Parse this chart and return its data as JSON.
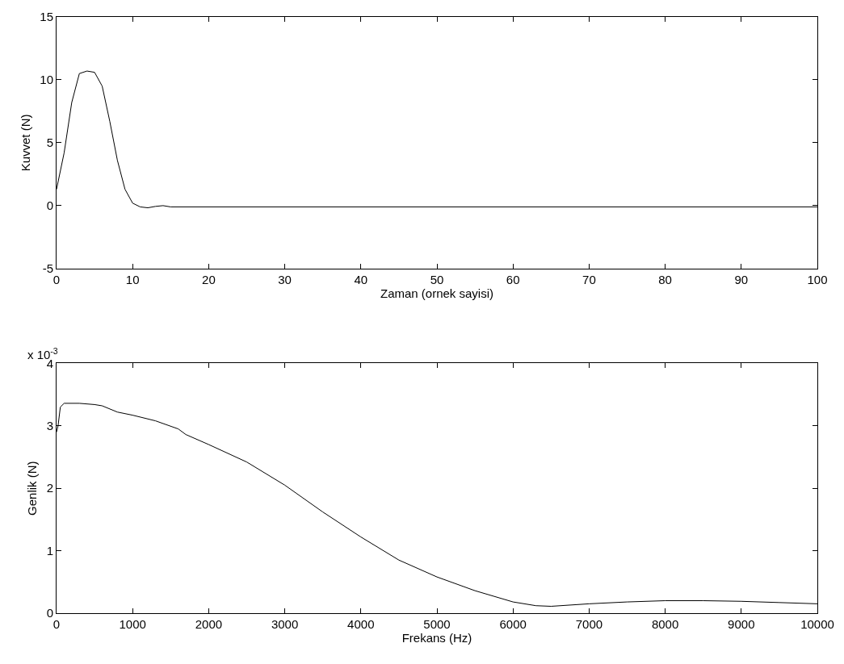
{
  "chart_data": [
    {
      "type": "line",
      "xlabel": "Zaman (ornek sayisi)",
      "ylabel": "Kuvvet (N)",
      "x": [
        0,
        1,
        2,
        3,
        4,
        5,
        6,
        7,
        8,
        9,
        10,
        11,
        12,
        13,
        14,
        15,
        100
      ],
      "series": [
        {
          "color": "#000000",
          "values": [
            1.3,
            4.2,
            8.2,
            10.5,
            10.7,
            10.6,
            9.5,
            6.7,
            3.6,
            1.3,
            0.2,
            -0.1,
            -0.17,
            -0.06,
            0.0,
            -0.1,
            -0.1
          ]
        }
      ],
      "xlim": [
        0,
        100
      ],
      "xticks": [
        0,
        10,
        20,
        30,
        40,
        50,
        60,
        70,
        80,
        90,
        100
      ],
      "ylim": [
        -5,
        15
      ],
      "yticks": [
        -5,
        0,
        5,
        10,
        15
      ],
      "line_style": "solid"
    },
    {
      "type": "line",
      "xlabel": "Frekans (Hz)",
      "ylabel": "Genlik (N)",
      "annotations": [
        "x 10$^{-3}$"
      ],
      "x": [
        0,
        20,
        50,
        100,
        300,
        500,
        600,
        800,
        1000,
        1300,
        1600,
        1700,
        2000,
        2500,
        3000,
        3500,
        4000,
        4500,
        5000,
        5500,
        6000,
        6300,
        6500,
        7000,
        7500,
        8000,
        8500,
        9000,
        9500,
        10000
      ],
      "series": [
        {
          "color": "#000000",
          "values": [
            2.9,
            3.0,
            3.3,
            3.36,
            3.36,
            3.34,
            3.32,
            3.22,
            3.17,
            3.08,
            2.95,
            2.86,
            2.7,
            2.42,
            2.05,
            1.62,
            1.22,
            0.85,
            0.58,
            0.36,
            0.18,
            0.12,
            0.11,
            0.15,
            0.18,
            0.2,
            0.2,
            0.19,
            0.17,
            0.15
          ]
        }
      ],
      "xlim": [
        0,
        10000
      ],
      "xticks": [
        0,
        1000,
        2000,
        3000,
        4000,
        5000,
        6000,
        7000,
        8000,
        9000,
        10000
      ],
      "ylim": [
        0,
        4
      ],
      "yticks": [
        0,
        1,
        2,
        3,
        4
      ],
      "line_style": "solid"
    }
  ]
}
